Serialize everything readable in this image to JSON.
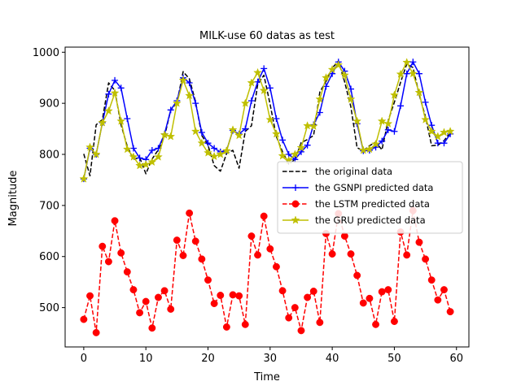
{
  "chart_data": {
    "type": "line",
    "title": "MILK-use 60 datas as test",
    "xlabel": "Time",
    "ylabel": "Magnitude",
    "xlim": [
      -3,
      62
    ],
    "ylim": [
      423,
      1010
    ],
    "xticks": [
      0,
      10,
      20,
      30,
      40,
      50,
      60
    ],
    "yticks": [
      500,
      600,
      700,
      800,
      900,
      1000
    ],
    "grid": false,
    "legend_position": "center-right",
    "x": [
      0,
      1,
      2,
      3,
      4,
      5,
      6,
      7,
      8,
      9,
      10,
      11,
      12,
      13,
      14,
      15,
      16,
      17,
      18,
      19,
      20,
      21,
      22,
      23,
      24,
      25,
      26,
      27,
      28,
      29,
      30,
      31,
      32,
      33,
      34,
      35,
      36,
      37,
      38,
      39,
      40,
      41,
      42,
      43,
      44,
      45,
      46,
      47,
      48,
      49,
      50,
      51,
      52,
      53,
      54,
      55,
      56,
      57,
      58,
      59
    ],
    "series": [
      {
        "name": "the original data",
        "color": "#000000",
        "style": "dashed",
        "marker": "none",
        "values": [
          801,
          758,
          858,
          868,
          940,
          925,
          858,
          816,
          790,
          794,
          762,
          791,
          809,
          835,
          887,
          901,
          962,
          948,
          903,
          837,
          818,
          778,
          767,
          802,
          808,
          773,
          845,
          856,
          937,
          955,
          898,
          835,
          805,
          781,
          790,
          823,
          829,
          837,
          922,
          943,
          969,
          983,
          942,
          893,
          813,
          807,
          817,
          824,
          809,
          866,
          902,
          941,
          977,
          970,
          917,
          874,
          817,
          818,
          827,
          843
        ]
      },
      {
        "name": "the GSNPI predicted data",
        "color": "#0000ff",
        "style": "solid",
        "marker": "plus",
        "values": [
          752,
          812,
          800,
          862,
          918,
          945,
          930,
          870,
          812,
          793,
          790,
          808,
          812,
          840,
          887,
          905,
          950,
          940,
          900,
          843,
          822,
          812,
          805,
          808,
          847,
          840,
          850,
          905,
          942,
          968,
          930,
          870,
          828,
          800,
          790,
          805,
          818,
          858,
          882,
          933,
          958,
          981,
          963,
          928,
          860,
          807,
          808,
          814,
          826,
          848,
          845,
          895,
          958,
          981,
          958,
          902,
          857,
          822,
          822,
          840
        ]
      },
      {
        "name": "the LSTM predicted data",
        "color": "#ff0000",
        "style": "dashed",
        "marker": "circle",
        "values": [
          477,
          523,
          451,
          620,
          590,
          670,
          607,
          570,
          535,
          490,
          512,
          460,
          520,
          533,
          497,
          632,
          602,
          685,
          630,
          595,
          554,
          508,
          524,
          462,
          525,
          523,
          467,
          640,
          603,
          679,
          615,
          580,
          533,
          480,
          500,
          455,
          520,
          532,
          471,
          645,
          605,
          684,
          640,
          605,
          563,
          509,
          518,
          467,
          531,
          535,
          473,
          648,
          603,
          690,
          628,
          595,
          554,
          515,
          535,
          492
        ]
      },
      {
        "name": "the GRU predicted data",
        "color": "#bfbf00",
        "style": "solid",
        "marker": "star",
        "values": [
          752,
          814,
          800,
          862,
          885,
          920,
          865,
          810,
          795,
          778,
          780,
          785,
          795,
          838,
          835,
          900,
          945,
          915,
          845,
          822,
          803,
          796,
          800,
          807,
          848,
          837,
          900,
          940,
          960,
          925,
          868,
          840,
          797,
          788,
          800,
          813,
          856,
          855,
          908,
          950,
          966,
          975,
          955,
          908,
          865,
          808,
          810,
          820,
          865,
          860,
          916,
          957,
          980,
          958,
          921,
          868,
          845,
          835,
          843,
          845
        ]
      }
    ]
  }
}
